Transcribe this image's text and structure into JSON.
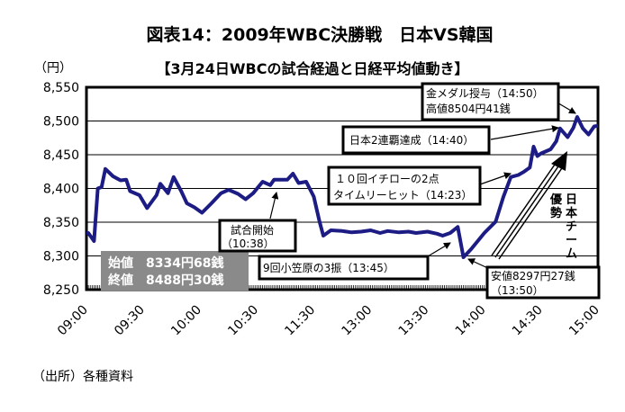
{
  "chart_data": {
    "type": "line",
    "title": "図表14：2009年WBC決勝戦　日本VS韓国",
    "subtitle": "【3月24日WBCの試合経過と日経平均値動き】",
    "ylabel": "（円）",
    "xlabel": "",
    "ylim": [
      8250,
      8550
    ],
    "yticks": [
      "8,550",
      "8,500",
      "8,450",
      "8,400",
      "8,350",
      "8,300",
      "8,250"
    ],
    "ytick_values": [
      8550,
      8500,
      8450,
      8400,
      8350,
      8300,
      8250
    ],
    "xticks": [
      "09:00",
      "09:30",
      "10:00",
      "10:30",
      "11:30",
      "13:00",
      "13:30",
      "14:00",
      "14:30",
      "15:00"
    ],
    "x_unit": "trading minutes from 09:00 (lunch break compressed)",
    "xlim": [
      0,
      270
    ],
    "grid": true,
    "series": [
      {
        "name": "日経平均",
        "color": "#1c1c84",
        "points": [
          [
            0,
            8334
          ],
          [
            1,
            8334
          ],
          [
            4,
            8322
          ],
          [
            6,
            8400
          ],
          [
            8,
            8402
          ],
          [
            10,
            8429
          ],
          [
            14,
            8418
          ],
          [
            18,
            8412
          ],
          [
            21,
            8413
          ],
          [
            23,
            8396
          ],
          [
            28,
            8390
          ],
          [
            32,
            8371
          ],
          [
            37,
            8390
          ],
          [
            39,
            8407
          ],
          [
            43,
            8393
          ],
          [
            46,
            8417
          ],
          [
            50,
            8396
          ],
          [
            53,
            8378
          ],
          [
            57,
            8372
          ],
          [
            61,
            8364
          ],
          [
            66,
            8378
          ],
          [
            71,
            8393
          ],
          [
            75,
            8398
          ],
          [
            80,
            8392
          ],
          [
            84,
            8384
          ],
          [
            88,
            8393
          ],
          [
            93,
            8410
          ],
          [
            97,
            8405
          ],
          [
            99,
            8413
          ],
          [
            106,
            8413
          ],
          [
            109,
            8422
          ],
          [
            112,
            8408
          ],
          [
            116,
            8410
          ],
          [
            120,
            8388
          ],
          [
            123,
            8351
          ],
          [
            125,
            8330
          ],
          [
            129,
            8338
          ],
          [
            135,
            8337
          ],
          [
            140,
            8335
          ],
          [
            145,
            8336
          ],
          [
            150,
            8338
          ],
          [
            155,
            8334
          ],
          [
            159,
            8337
          ],
          [
            165,
            8335
          ],
          [
            170,
            8336
          ],
          [
            174,
            8334
          ],
          [
            180,
            8336
          ],
          [
            185,
            8333
          ],
          [
            188,
            8330
          ],
          [
            192,
            8334
          ],
          [
            196,
            8343
          ],
          [
            199,
            8298
          ],
          [
            203,
            8310
          ],
          [
            210,
            8334
          ],
          [
            216,
            8351
          ],
          [
            220,
            8387
          ],
          [
            224,
            8417
          ],
          [
            228,
            8420
          ],
          [
            231,
            8425
          ],
          [
            234,
            8431
          ],
          [
            236,
            8462
          ],
          [
            238,
            8448
          ],
          [
            240,
            8452
          ],
          [
            245,
            8458
          ],
          [
            248,
            8470
          ],
          [
            250,
            8489
          ],
          [
            254,
            8476
          ],
          [
            257,
            8490
          ],
          [
            259,
            8506
          ],
          [
            262,
            8489
          ],
          [
            265,
            8480
          ],
          [
            268,
            8492
          ],
          [
            270,
            8493
          ]
        ]
      }
    ],
    "annotations": {
      "game_start": [
        "試合開始",
        "（10:38）"
      ],
      "strikeout": "9回小笠原の3振（13:45）",
      "low": [
        "安値8297円27銭",
        "（13:50）"
      ],
      "ichiro": [
        "１０回イチローの2点",
        "タイムリーヒット（14:23）"
      ],
      "champion": "日本2連覇達成（14:40）",
      "medal": [
        "金メダル授与（14:50）",
        "高値8504円41銭"
      ],
      "trend_left": [
        "優",
        "勢"
      ],
      "trend_right": [
        "日",
        "本",
        "チ",
        "ー",
        "ム"
      ],
      "open_close": [
        "始値　8334円68銭",
        "終値　8488円30銭"
      ]
    },
    "source": "（出所）各種資料"
  }
}
